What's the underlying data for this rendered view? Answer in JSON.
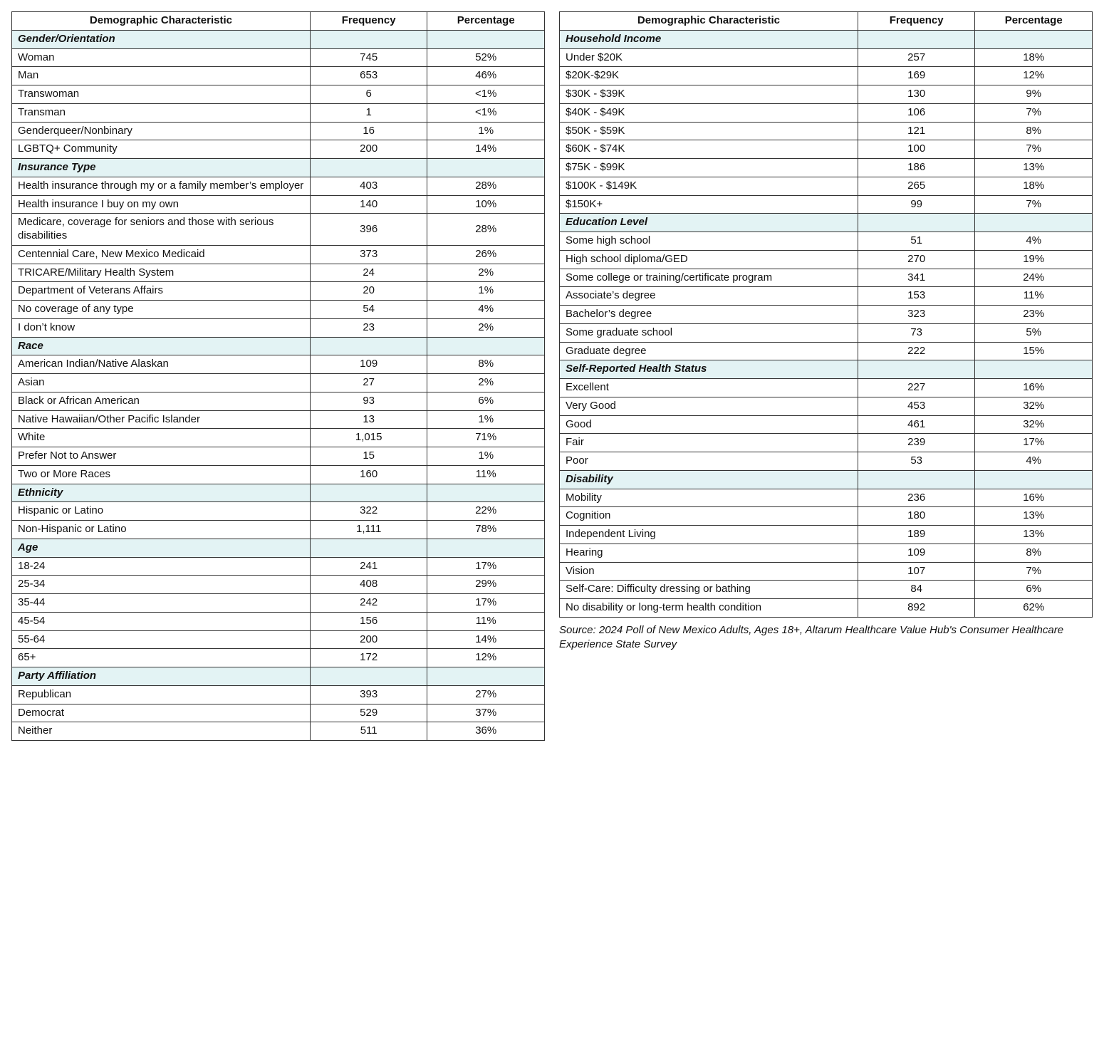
{
  "headers": {
    "characteristic": "Demographic Characteristic",
    "frequency": "Frequency",
    "percentage": "Percentage"
  },
  "colors": {
    "section_bg": "#e3f3f4",
    "border": "#333333",
    "text": "#111111",
    "background": "#ffffff"
  },
  "left": [
    {
      "type": "section",
      "label": "Gender/Orientation"
    },
    {
      "type": "row",
      "label": "Woman",
      "freq": "745",
      "pct": "52%"
    },
    {
      "type": "row",
      "label": "Man",
      "freq": "653",
      "pct": "46%"
    },
    {
      "type": "row",
      "label": "Transwoman",
      "freq": "6",
      "pct": "<1%"
    },
    {
      "type": "row",
      "label": "Transman",
      "freq": "1",
      "pct": "<1%"
    },
    {
      "type": "row",
      "label": "Genderqueer/Nonbinary",
      "freq": "16",
      "pct": "1%"
    },
    {
      "type": "row",
      "label": "LGBTQ+ Community",
      "freq": "200",
      "pct": "14%"
    },
    {
      "type": "section",
      "label": "Insurance Type"
    },
    {
      "type": "row",
      "label": "Health insurance through my or a family member’s employer",
      "freq": "403",
      "pct": "28%"
    },
    {
      "type": "row",
      "label": "Health insurance I buy on my own",
      "freq": "140",
      "pct": "10%"
    },
    {
      "type": "row",
      "label": "Medicare, coverage for seniors and those with serious disabilities",
      "freq": "396",
      "pct": "28%"
    },
    {
      "type": "row",
      "label": "Centennial Care, New Mexico Medicaid",
      "freq": "373",
      "pct": "26%"
    },
    {
      "type": "row",
      "label": "TRICARE/Military Health System",
      "freq": "24",
      "pct": "2%"
    },
    {
      "type": "row",
      "label": "Department of Veterans Affairs",
      "freq": "20",
      "pct": "1%"
    },
    {
      "type": "row",
      "label": "No coverage of any type",
      "freq": "54",
      "pct": "4%"
    },
    {
      "type": "row",
      "label": "I don’t know",
      "freq": "23",
      "pct": "2%"
    },
    {
      "type": "section",
      "label": "Race"
    },
    {
      "type": "row",
      "label": "American Indian/Native Alaskan",
      "freq": "109",
      "pct": "8%"
    },
    {
      "type": "row",
      "label": "Asian",
      "freq": "27",
      "pct": "2%"
    },
    {
      "type": "row",
      "label": "Black or African American",
      "freq": "93",
      "pct": "6%"
    },
    {
      "type": "row",
      "label": "Native Hawaiian/Other Pacific Islander",
      "freq": "13",
      "pct": "1%"
    },
    {
      "type": "row",
      "label": "White",
      "freq": "1,015",
      "pct": "71%"
    },
    {
      "type": "row",
      "label": "Prefer Not to Answer",
      "freq": "15",
      "pct": "1%"
    },
    {
      "type": "row",
      "label": "Two or More Races",
      "freq": "160",
      "pct": "11%"
    },
    {
      "type": "section",
      "label": "Ethnicity"
    },
    {
      "type": "row",
      "label": "Hispanic or Latino",
      "freq": "322",
      "pct": "22%"
    },
    {
      "type": "row",
      "label": "Non-Hispanic or Latino",
      "freq": "1,111",
      "pct": "78%"
    },
    {
      "type": "section",
      "label": "Age"
    },
    {
      "type": "row",
      "label": "18-24",
      "freq": "241",
      "pct": "17%"
    },
    {
      "type": "row",
      "label": "25-34",
      "freq": "408",
      "pct": "29%"
    },
    {
      "type": "row",
      "label": "35-44",
      "freq": "242",
      "pct": "17%"
    },
    {
      "type": "row",
      "label": "45-54",
      "freq": "156",
      "pct": "11%"
    },
    {
      "type": "row",
      "label": "55-64",
      "freq": "200",
      "pct": "14%"
    },
    {
      "type": "row",
      "label": "65+",
      "freq": "172",
      "pct": "12%"
    },
    {
      "type": "section",
      "label": "Party Affiliation"
    },
    {
      "type": "row",
      "label": "Republican",
      "freq": "393",
      "pct": "27%"
    },
    {
      "type": "row",
      "label": "Democrat",
      "freq": "529",
      "pct": "37%"
    },
    {
      "type": "row",
      "label": "Neither",
      "freq": "511",
      "pct": "36%"
    }
  ],
  "right": [
    {
      "type": "section",
      "label": "Household Income"
    },
    {
      "type": "row",
      "label": "Under $20K",
      "freq": "257",
      "pct": "18%"
    },
    {
      "type": "row",
      "label": "$20K-$29K",
      "freq": "169",
      "pct": "12%"
    },
    {
      "type": "row",
      "label": "$30K - $39K",
      "freq": "130",
      "pct": "9%"
    },
    {
      "type": "row",
      "label": "$40K - $49K",
      "freq": "106",
      "pct": "7%"
    },
    {
      "type": "row",
      "label": "$50K - $59K",
      "freq": "121",
      "pct": "8%"
    },
    {
      "type": "row",
      "label": "$60K - $74K",
      "freq": "100",
      "pct": "7%"
    },
    {
      "type": "row",
      "label": "$75K - $99K",
      "freq": "186",
      "pct": "13%"
    },
    {
      "type": "row",
      "label": "$100K - $149K",
      "freq": "265",
      "pct": "18%"
    },
    {
      "type": "row",
      "label": "$150K+",
      "freq": "99",
      "pct": "7%"
    },
    {
      "type": "section",
      "label": "Education Level"
    },
    {
      "type": "row",
      "label": "Some high school",
      "freq": "51",
      "pct": "4%"
    },
    {
      "type": "row",
      "label": "High school diploma/GED",
      "freq": "270",
      "pct": "19%"
    },
    {
      "type": "row",
      "label": "Some college or training/certificate program",
      "freq": "341",
      "pct": "24%"
    },
    {
      "type": "row",
      "label": "Associate’s degree",
      "freq": "153",
      "pct": "11%"
    },
    {
      "type": "row",
      "label": "Bachelor’s degree",
      "freq": "323",
      "pct": "23%"
    },
    {
      "type": "row",
      "label": "Some graduate school",
      "freq": "73",
      "pct": "5%"
    },
    {
      "type": "row",
      "label": "Graduate degree",
      "freq": "222",
      "pct": "15%"
    },
    {
      "type": "section",
      "label": "Self-Reported Health Status"
    },
    {
      "type": "row",
      "label": "Excellent",
      "freq": "227",
      "pct": "16%"
    },
    {
      "type": "row",
      "label": "Very Good",
      "freq": "453",
      "pct": "32%"
    },
    {
      "type": "row",
      "label": "Good",
      "freq": "461",
      "pct": "32%"
    },
    {
      "type": "row",
      "label": "Fair",
      "freq": "239",
      "pct": "17%"
    },
    {
      "type": "row",
      "label": "Poor",
      "freq": "53",
      "pct": "4%"
    },
    {
      "type": "section",
      "label": "Disability"
    },
    {
      "type": "row",
      "label": "Mobility",
      "freq": "236",
      "pct": "16%"
    },
    {
      "type": "row",
      "label": "Cognition",
      "freq": "180",
      "pct": "13%"
    },
    {
      "type": "row",
      "label": "Independent Living",
      "freq": "189",
      "pct": "13%"
    },
    {
      "type": "row",
      "label": "Hearing",
      "freq": "109",
      "pct": "8%"
    },
    {
      "type": "row",
      "label": "Vision",
      "freq": "107",
      "pct": "7%"
    },
    {
      "type": "row",
      "label": "Self-Care: Difficulty dressing or bathing",
      "freq": "84",
      "pct": "6%"
    },
    {
      "type": "row",
      "label": "No disability or long-term health condition",
      "freq": "892",
      "pct": "62%"
    }
  ],
  "source": "Source: 2024 Poll of New Mexico Adults, Ages 18+, Altarum Healthcare Value Hub's Consumer Healthcare Experience State Survey"
}
